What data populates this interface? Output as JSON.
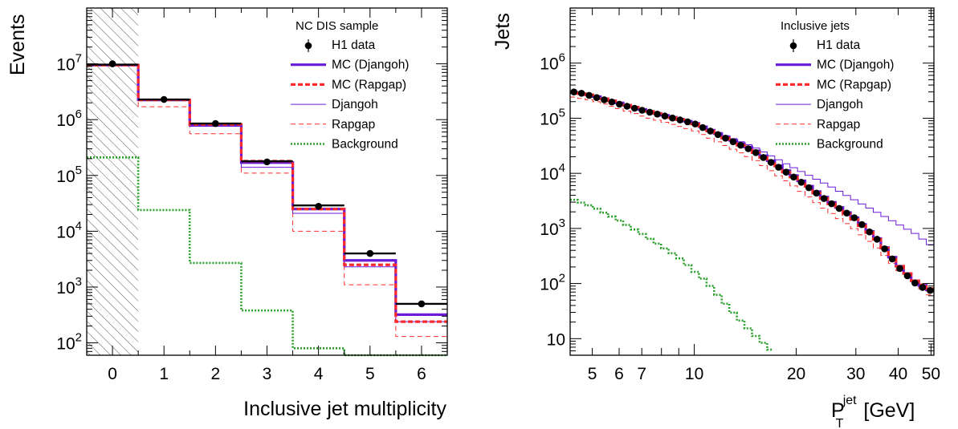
{
  "chart_data": [
    {
      "type": "step-histogram",
      "log_y": true,
      "ylabel": "Events",
      "xlabel": "Inclusive jet multiplicity",
      "xlim": [
        -0.5,
        6.5
      ],
      "ylim": [
        60,
        100000000
      ],
      "x_tick_labels": [
        "0",
        "1",
        "2",
        "3",
        "4",
        "5",
        "6"
      ],
      "y_tick_labels": [
        {
          "value": 100,
          "base": "10",
          "exp": "2"
        },
        {
          "value": 1000,
          "base": "10",
          "exp": "3"
        },
        {
          "value": 10000,
          "base": "10",
          "exp": "4"
        },
        {
          "value": 100000,
          "base": "10",
          "exp": "5"
        },
        {
          "value": 1000000,
          "base": "10",
          "exp": "6"
        },
        {
          "value": 10000000,
          "base": "10",
          "exp": "7"
        }
      ],
      "excluded_region": [
        -0.5,
        0.5
      ],
      "legend": {
        "title": "NC DIS sample",
        "placement": "top-right"
      },
      "categories": [
        0,
        1,
        2,
        3,
        4,
        5,
        6
      ],
      "data": {
        "name": "H1 data",
        "values": [
          10000000,
          2300000,
          850000,
          175000,
          28000,
          4000,
          500
        ]
      },
      "series": [
        {
          "name": "MC (Djangoh)",
          "style": "thick-solid",
          "color": "#6a1bd8",
          "values": [
            9500000,
            2250000,
            800000,
            170000,
            25000,
            3000,
            320
          ]
        },
        {
          "name": "MC (Rapgap)",
          "style": "thick-dashed",
          "color": "#ff2a2a",
          "values": [
            9500000,
            2250000,
            820000,
            180000,
            25000,
            2500,
            240
          ]
        },
        {
          "name": "Djangoh",
          "style": "thin-solid",
          "color": "#6a1bd8",
          "values": [
            9400000,
            2200000,
            760000,
            140000,
            21000,
            2300,
            240
          ]
        },
        {
          "name": "Rapgap",
          "style": "thin-dashed",
          "color": "#ff2a2a",
          "values": [
            9400000,
            1700000,
            560000,
            110000,
            10000,
            1100,
            130
          ]
        },
        {
          "name": "Background",
          "style": "dotted",
          "color": "#2ca02c",
          "values": [
            210000,
            24000,
            2700,
            380,
            80,
            60,
            60
          ]
        }
      ],
      "reference_lines": [
        {
          "name": "H1 data (line)",
          "color": "#000000",
          "values": [
            9700000,
            2300000,
            850000,
            180000,
            29000,
            4000,
            500
          ]
        }
      ]
    },
    {
      "type": "step-histogram",
      "log_x": true,
      "log_y": true,
      "ylabel": "Jets",
      "xlabel": {
        "base": "P",
        "sup": "jet",
        "sub": "T",
        "suffix": "[GeV]"
      },
      "xlim": [
        4.3,
        51
      ],
      "ylim": [
        5,
        10000000
      ],
      "x_tick_labels": [
        {
          "value": 5,
          "label": "5"
        },
        {
          "value": 6,
          "label": "6"
        },
        {
          "value": 7,
          "label": "7"
        },
        {
          "value": 10,
          "label": "10"
        },
        {
          "value": 20,
          "label": "20"
        },
        {
          "value": 30,
          "label": "30"
        },
        {
          "value": 40,
          "label": "40"
        },
        {
          "value": 50,
          "label": "50"
        }
      ],
      "y_tick_labels": [
        {
          "value": 10,
          "base": "10",
          "exp": ""
        },
        {
          "value": 100,
          "base": "10",
          "exp": "2"
        },
        {
          "value": 1000,
          "base": "10",
          "exp": "3"
        },
        {
          "value": 10000,
          "base": "10",
          "exp": "4"
        },
        {
          "value": 100000,
          "base": "10",
          "exp": "5"
        },
        {
          "value": 1000000,
          "base": "10",
          "exp": "6"
        }
      ],
      "legend": {
        "title": "Inclusive jets",
        "placement": "top-right"
      },
      "data": {
        "name": "H1 data",
        "x": [
          4.5,
          5,
          6,
          7,
          10,
          15,
          20,
          25,
          30,
          35,
          40,
          45,
          49
        ],
        "y": [
          300000,
          250000,
          180000,
          140000,
          80000,
          25000,
          8000,
          3000,
          1500,
          600,
          200,
          100,
          75
        ]
      },
      "series": [
        {
          "name": "MC (Djangoh)",
          "style": "thick-solid",
          "color": "#6a1bd8",
          "x": [
            4.3,
            5,
            6,
            7,
            10,
            15,
            20,
            25,
            30,
            35,
            40,
            45,
            51
          ],
          "y": [
            300000,
            260000,
            190000,
            145000,
            82000,
            27000,
            8500,
            3200,
            1500,
            620,
            220,
            110,
            70
          ]
        },
        {
          "name": "MC (Rapgap)",
          "style": "thick-dashed",
          "color": "#ff2a2a",
          "x": [
            4.3,
            5,
            6,
            7,
            10,
            15,
            20,
            25,
            30,
            35,
            40,
            45,
            51
          ],
          "y": [
            300000,
            260000,
            190000,
            145000,
            80000,
            25000,
            8000,
            3000,
            1400,
            600,
            220,
            110,
            75
          ]
        },
        {
          "name": "Djangoh",
          "style": "thin-solid",
          "color": "#6a1bd8",
          "x": [
            4.3,
            5,
            6,
            7,
            10,
            15,
            20,
            25,
            30,
            35,
            40,
            45,
            51
          ],
          "y": [
            300000,
            260000,
            190000,
            145000,
            82000,
            30000,
            12000,
            6000,
            3200,
            1900,
            1200,
            800,
            450
          ]
        },
        {
          "name": "Rapgap",
          "style": "thin-dashed",
          "color": "#ff2a2a",
          "x": [
            4.3,
            5,
            6,
            7,
            10,
            15,
            20,
            25,
            30,
            35,
            40,
            45,
            51
          ],
          "y": [
            250000,
            210000,
            150000,
            110000,
            60000,
            18000,
            5500,
            2000,
            950,
            420,
            180,
            100,
            55
          ]
        },
        {
          "name": "Background",
          "style": "dotted",
          "color": "#2ca02c",
          "x": [
            4.3,
            5,
            6,
            7,
            9,
            11,
            13,
            15,
            17
          ],
          "y": [
            3500,
            2500,
            1400,
            800,
            300,
            100,
            30,
            12,
            6
          ]
        }
      ]
    }
  ]
}
